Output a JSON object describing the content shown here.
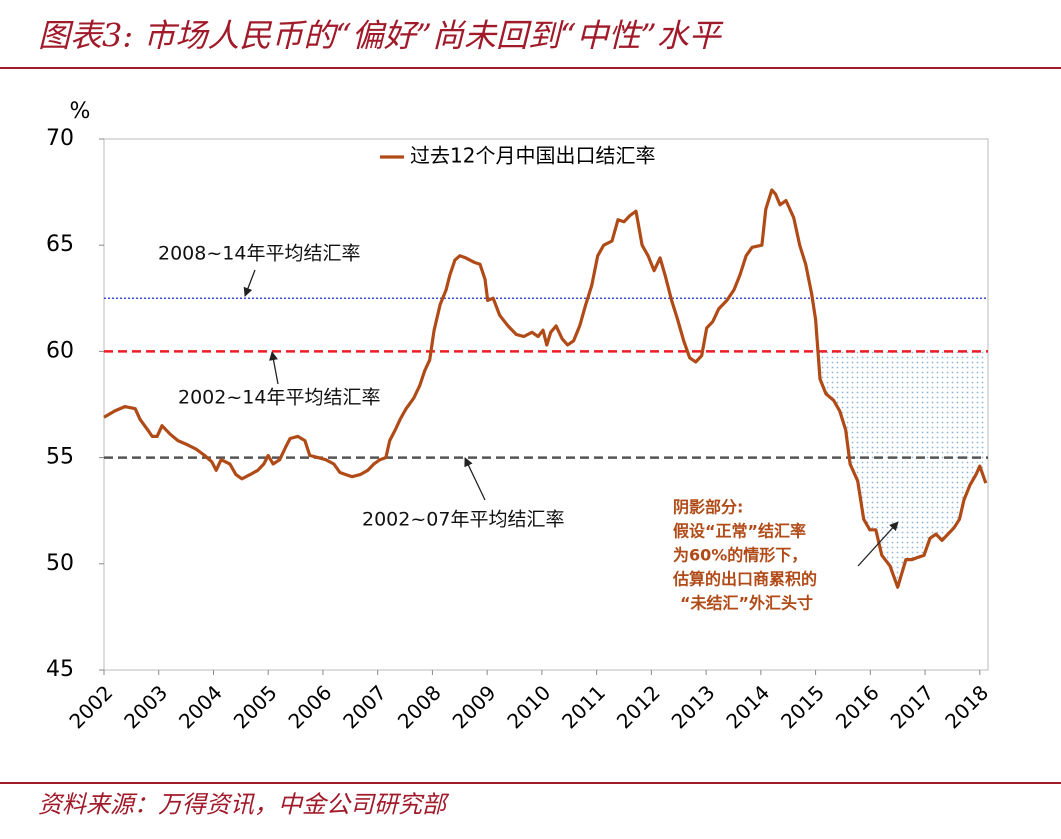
{
  "title": "图表3: 市场人民币的“偏好”尚未回到“中性”水平",
  "source": "资料来源：万得资讯，中金公司研究部",
  "chart_data": {
    "type": "line",
    "ylabel": "%",
    "xlim": [
      2002,
      2018.15
    ],
    "xticks": [
      2002,
      2003,
      2004,
      2005,
      2006,
      2007,
      2008,
      2009,
      2010,
      2011,
      2012,
      2013,
      2014,
      2015,
      2016,
      2017,
      2018
    ],
    "ylim": [
      45,
      70
    ],
    "yticks": [
      45,
      50,
      55,
      60,
      65,
      70
    ],
    "legend": "top",
    "series": [
      {
        "name": "过去12个月中国出口结汇率",
        "color": "#b04a17",
        "x": [
          2002.0,
          2002.2,
          2002.38,
          2002.57,
          2002.66,
          2002.8,
          2002.88,
          2002.97,
          2003.06,
          2003.21,
          2003.35,
          2003.53,
          2003.68,
          2003.84,
          2003.97,
          2004.05,
          2004.14,
          2004.3,
          2004.41,
          2004.52,
          2004.67,
          2004.81,
          2004.92,
          2005.0,
          2005.09,
          2005.21,
          2005.32,
          2005.4,
          2005.54,
          2005.67,
          2005.76,
          2005.91,
          2006.05,
          2006.2,
          2006.31,
          2006.42,
          2006.53,
          2006.68,
          2006.82,
          2006.93,
          2007.04,
          2007.15,
          2007.22,
          2007.32,
          2007.41,
          2007.52,
          2007.66,
          2007.77,
          2007.86,
          2007.95,
          2008.03,
          2008.14,
          2008.25,
          2008.32,
          2008.41,
          2008.5,
          2008.61,
          2008.76,
          2008.87,
          2008.96,
          2009.01,
          2009.11,
          2009.23,
          2009.38,
          2009.53,
          2009.67,
          2009.82,
          2009.93,
          2010.02,
          2010.09,
          2010.16,
          2010.26,
          2010.37,
          2010.47,
          2010.58,
          2010.69,
          2010.8,
          2010.91,
          2011.02,
          2011.13,
          2011.28,
          2011.39,
          2011.5,
          2011.61,
          2011.72,
          2011.83,
          2011.94,
          2012.05,
          2012.16,
          2012.26,
          2012.37,
          2012.48,
          2012.59,
          2012.7,
          2012.81,
          2012.92,
          2013.01,
          2013.12,
          2013.23,
          2013.38,
          2013.51,
          2013.62,
          2013.73,
          2013.84,
          2014.02,
          2014.09,
          2014.2,
          2014.27,
          2014.35,
          2014.46,
          2014.6,
          2014.71,
          2014.82,
          2014.93,
          2015.0,
          2015.08,
          2015.19,
          2015.33,
          2015.44,
          2015.55,
          2015.63,
          2015.77,
          2015.88,
          2015.99,
          2016.1,
          2016.21,
          2016.36,
          2016.5,
          2016.65,
          2016.76,
          2016.87,
          2016.98,
          2017.09,
          2017.2,
          2017.31,
          2017.42,
          2017.53,
          2017.63,
          2017.71,
          2017.82,
          2017.93,
          2018.0,
          2018.11
        ],
        "values": [
          56.9,
          57.2,
          57.4,
          57.3,
          56.8,
          56.3,
          56.0,
          56.0,
          56.5,
          56.1,
          55.8,
          55.6,
          55.4,
          55.1,
          54.8,
          54.4,
          54.9,
          54.7,
          54.2,
          54.0,
          54.2,
          54.4,
          54.7,
          55.1,
          54.7,
          54.9,
          55.5,
          55.9,
          56.0,
          55.8,
          55.1,
          55.0,
          54.9,
          54.7,
          54.3,
          54.2,
          54.1,
          54.2,
          54.4,
          54.7,
          54.9,
          55.0,
          55.8,
          56.3,
          56.8,
          57.3,
          57.8,
          58.4,
          59.1,
          59.6,
          61.0,
          62.2,
          62.9,
          63.6,
          64.3,
          64.5,
          64.4,
          64.2,
          64.1,
          63.4,
          62.4,
          62.5,
          61.7,
          61.2,
          60.8,
          60.7,
          60.9,
          60.7,
          61.0,
          60.3,
          60.9,
          61.2,
          60.6,
          60.3,
          60.5,
          61.2,
          62.2,
          63.1,
          64.5,
          65.0,
          65.2,
          66.2,
          66.1,
          66.4,
          66.6,
          65.0,
          64.5,
          63.8,
          64.4,
          63.5,
          62.4,
          61.5,
          60.5,
          59.7,
          59.5,
          59.8,
          61.1,
          61.4,
          62.0,
          62.4,
          62.9,
          63.6,
          64.5,
          64.9,
          65.0,
          66.7,
          67.6,
          67.4,
          66.9,
          67.1,
          66.3,
          65.0,
          64.1,
          62.7,
          61.5,
          58.7,
          58.0,
          57.7,
          57.2,
          56.3,
          54.7,
          53.9,
          52.1,
          51.6,
          51.6,
          50.4,
          49.9,
          48.9,
          50.2,
          50.2,
          50.3,
          50.4,
          51.2,
          51.4,
          51.1,
          51.4,
          51.7,
          52.1,
          53.0,
          53.7,
          54.2,
          54.6,
          53.8
        ]
      }
    ],
    "reference_lines": [
      {
        "value": 62.5,
        "label": "2008~14年平均结汇率",
        "color": "#3a4fd0",
        "style": "dotted"
      },
      {
        "value": 60,
        "label": "2002~14年平均结汇率",
        "color": "#ee1c25",
        "style": "dashed"
      },
      {
        "value": 55,
        "label": "2002~07年平均结汇率",
        "color": "#555555",
        "style": "dashed"
      }
    ],
    "shade_from": 2015.08,
    "shade_color": "#8fb6d8",
    "annotation": {
      "color": "#b04a17",
      "lines": [
        "阴影部分:",
        "假设“正常”结汇率",
        "为60%的情形下，",
        "估算的出口商累积的",
        "“未结汇”外汇头寸"
      ]
    }
  }
}
